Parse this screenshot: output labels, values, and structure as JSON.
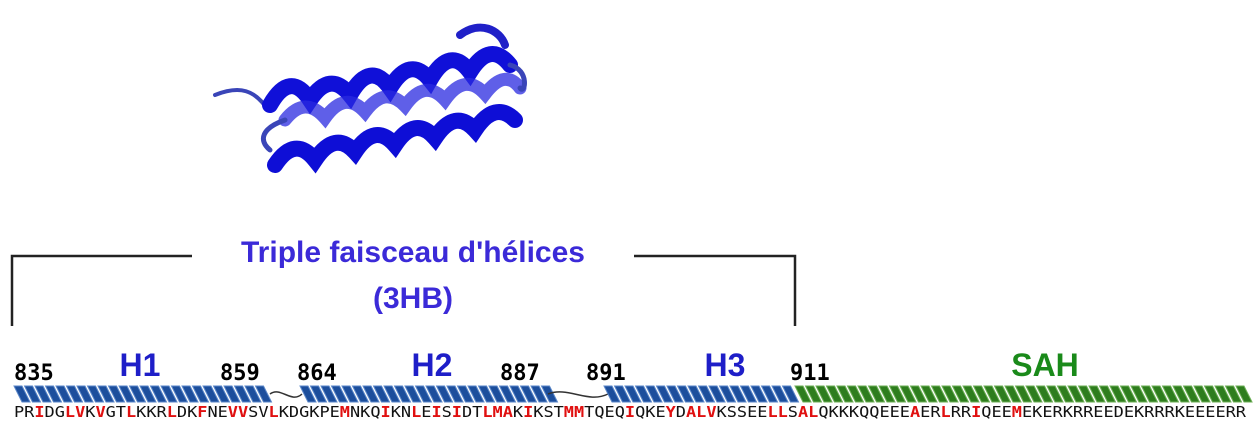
{
  "title": "Triple faisceau d'hélices",
  "subtitle": "(3HB)",
  "positions": [
    "835",
    "859",
    "864",
    "887",
    "891",
    "911"
  ],
  "helices": [
    "H1",
    "H2",
    "H3",
    "SAH"
  ],
  "sequence": [
    {
      "text": "PR",
      "red": false
    },
    {
      "text": "I",
      "red": true
    },
    {
      "text": "DG",
      "red": false
    },
    {
      "text": "LV",
      "red": true
    },
    {
      "text": "K",
      "red": false
    },
    {
      "text": "V",
      "red": true
    },
    {
      "text": "GT",
      "red": false
    },
    {
      "text": "L",
      "red": true
    },
    {
      "text": "KKR",
      "red": false
    },
    {
      "text": "L",
      "red": true
    },
    {
      "text": "DK",
      "red": false
    },
    {
      "text": "F",
      "red": true
    },
    {
      "text": "NE",
      "red": false
    },
    {
      "text": "VV",
      "red": true
    },
    {
      "text": "SV",
      "red": false
    },
    {
      "text": "L",
      "red": true
    },
    {
      "text": "KDGKPE",
      "red": false
    },
    {
      "text": "M",
      "red": true
    },
    {
      "text": "NKQ",
      "red": false
    },
    {
      "text": "I",
      "red": true
    },
    {
      "text": "KN",
      "red": false
    },
    {
      "text": "L",
      "red": true
    },
    {
      "text": "E",
      "red": false
    },
    {
      "text": "I",
      "red": true
    },
    {
      "text": "S",
      "red": false
    },
    {
      "text": "I",
      "red": true
    },
    {
      "text": "DT",
      "red": false
    },
    {
      "text": "LMA",
      "red": true
    },
    {
      "text": "K",
      "red": false
    },
    {
      "text": "I",
      "red": true
    },
    {
      "text": "KST",
      "red": false
    },
    {
      "text": "MM",
      "red": true
    },
    {
      "text": "TQEQ",
      "red": false
    },
    {
      "text": "I",
      "red": true
    },
    {
      "text": "QKE",
      "red": false
    },
    {
      "text": "Y",
      "red": true
    },
    {
      "text": "D",
      "red": false
    },
    {
      "text": "ALV",
      "red": true
    },
    {
      "text": "KSSEE",
      "red": false
    },
    {
      "text": "LL",
      "red": true
    },
    {
      "text": "S",
      "red": false
    },
    {
      "text": "AL",
      "red": true
    },
    {
      "text": "QKKKQQEEE",
      "red": false
    },
    {
      "text": "A",
      "red": true
    },
    {
      "text": "ER",
      "red": false
    },
    {
      "text": "L",
      "red": true
    },
    {
      "text": "RR",
      "red": false
    },
    {
      "text": "I",
      "red": true
    },
    {
      "text": "QEE",
      "red": false
    },
    {
      "text": "M",
      "red": true
    },
    {
      "text": "EKERKRREEDEKRRRKEEEERR",
      "red": false
    }
  ]
}
